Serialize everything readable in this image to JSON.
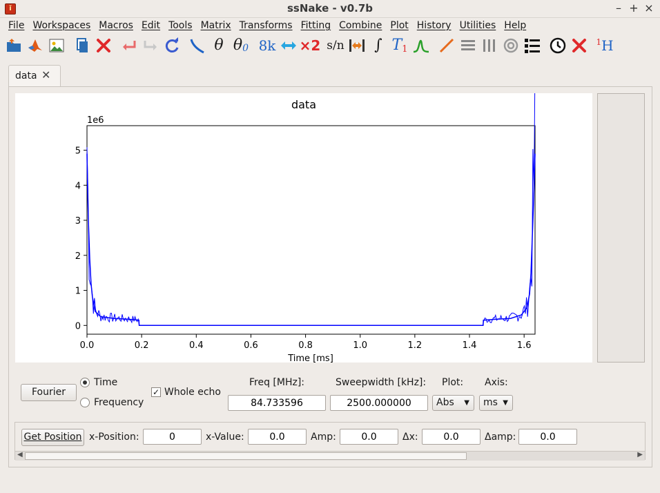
{
  "window": {
    "title": "ssNake - v0.7b",
    "minimize": "–",
    "maximize": "+",
    "close": "×"
  },
  "menu": [
    "File",
    "Workspaces",
    "Macros",
    "Edit",
    "Tools",
    "Matrix",
    "Transforms",
    "Fitting",
    "Combine",
    "Plot",
    "History",
    "Utilities",
    "Help"
  ],
  "toolbar": {
    "sn_label": "s/n",
    "eightk_label": "8k",
    "times2_label": "×2",
    "theta_label": "θ",
    "theta0_label": "θ",
    "theta0_sub": "0",
    "t1_label": "T",
    "t1_sub": "1",
    "h1_sup": "1",
    "h1_label": "H"
  },
  "tab": {
    "label": "data",
    "close": "✕"
  },
  "chart_data": {
    "type": "line",
    "title": "data",
    "xlabel": "Time [ms]",
    "ylabel": "",
    "offset_label": "1e6",
    "xlim": [
      0.0,
      1.64
    ],
    "ylim": [
      -0.25,
      5.7
    ],
    "xticks": [
      "0.0",
      "0.2",
      "0.4",
      "0.6",
      "0.8",
      "1.0",
      "1.2",
      "1.4",
      "1.6"
    ],
    "yticks": [
      "0",
      "1",
      "2",
      "3",
      "4",
      "5"
    ],
    "color": "#0000ff",
    "series": [
      {
        "x": [
          0.0,
          0.002,
          0.005,
          0.01,
          0.015,
          0.02,
          0.03,
          0.05,
          0.1,
          0.15,
          0.19,
          0.191,
          1.45,
          1.451,
          1.5,
          1.55,
          1.59,
          1.61,
          1.62,
          1.625,
          1.63,
          1.635,
          1.64
        ],
        "y": [
          4.9,
          4.0,
          3.0,
          1.9,
          1.2,
          0.8,
          0.4,
          0.25,
          0.2,
          0.18,
          0.15,
          0.0,
          0.0,
          0.15,
          0.18,
          0.2,
          0.3,
          0.5,
          0.9,
          1.5,
          2.5,
          3.6,
          4.9
        ]
      }
    ]
  },
  "controls": {
    "fourier_button": "Fourier",
    "time_label": "Time",
    "frequency_label": "Frequency",
    "whole_echo_label": "Whole echo",
    "freq_label": "Freq [MHz]:",
    "freq_value": "84.733596",
    "sweep_label": "Sweepwidth [kHz]:",
    "sweep_value": "2500.000000",
    "plot_label": "Plot:",
    "plot_value": "Abs",
    "axis_label": "Axis:",
    "axis_value": "ms"
  },
  "position": {
    "get_button": "Get Position",
    "xpos_label": "x-Position:",
    "xpos_value": "0",
    "xval_label": "x-Value:",
    "xval_value": "0.0",
    "amp_label": "Amp:",
    "amp_value": "0.0",
    "dx_label": "Δx:",
    "dx_value": "0.0",
    "damp_label": "Δamp:",
    "damp_value": "0.0"
  }
}
